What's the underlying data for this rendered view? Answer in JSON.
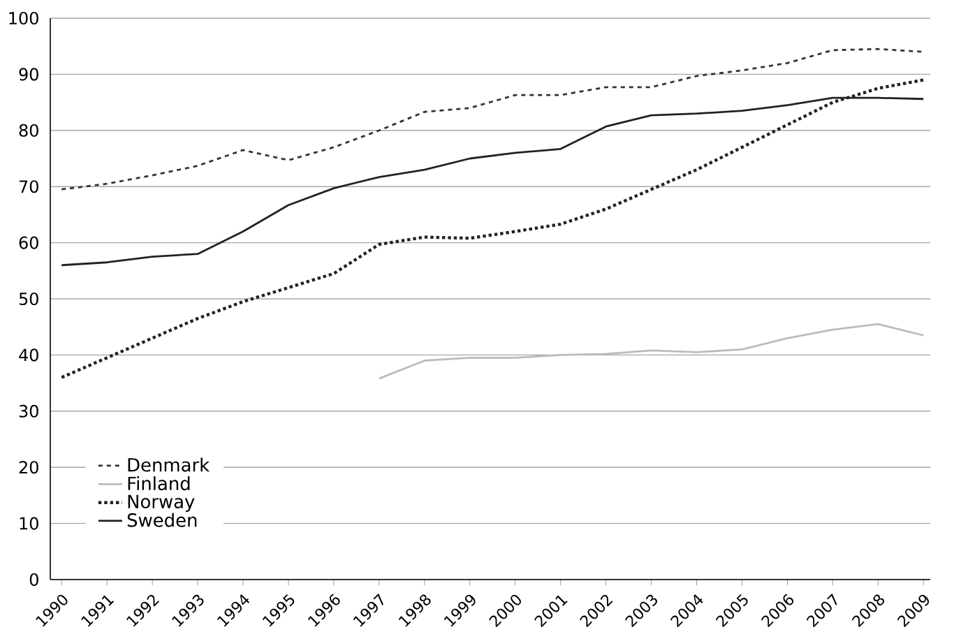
{
  "chart_data": {
    "type": "line",
    "categories": [
      "1990",
      "1991",
      "1992",
      "1993",
      "1994",
      "1995",
      "1996",
      "1997",
      "1998",
      "1999",
      "2000",
      "2001",
      "2002",
      "2003",
      "2004",
      "2005",
      "2006",
      "2007",
      "2008",
      "2009"
    ],
    "series": [
      {
        "name": "Denmark",
        "color": "#333333",
        "line_style": "dashed",
        "values": [
          69.5,
          70.5,
          72,
          73.7,
          76.5,
          74.7,
          77,
          80,
          83.3,
          84,
          86.3,
          86.3,
          87.7,
          87.7,
          89.7,
          90.7,
          92,
          94.3,
          94.5,
          94
        ]
      },
      {
        "name": "Finland",
        "color": "#bbbbbb",
        "line_style": "solid",
        "values": [
          null,
          null,
          null,
          null,
          null,
          null,
          null,
          35.8,
          39,
          39.5,
          39.5,
          40,
          40.2,
          40.8,
          40.5,
          41,
          43,
          44.5,
          45.5,
          43.5
        ]
      },
      {
        "name": "Norway",
        "color": "#222222",
        "line_style": "dotted",
        "values": [
          36,
          39.5,
          43,
          46.5,
          49.5,
          52,
          54.5,
          59.7,
          61,
          60.8,
          62,
          63.3,
          66,
          69.5,
          73,
          77,
          81,
          85,
          87.5,
          89
        ]
      },
      {
        "name": "Sweden",
        "color": "#222222",
        "line_style": "solid",
        "values": [
          56,
          56.5,
          57.5,
          58,
          62,
          66.7,
          69.7,
          71.7,
          73,
          75,
          76,
          76.7,
          80.7,
          82.7,
          83,
          83.5,
          84.5,
          85.8,
          85.8,
          85.6
        ]
      }
    ],
    "ylim": [
      0,
      100
    ],
    "yticks": [
      0,
      10,
      20,
      30,
      40,
      50,
      60,
      70,
      80,
      90,
      100
    ],
    "grid": "y",
    "legend": "bottom left",
    "marker": "none"
  }
}
